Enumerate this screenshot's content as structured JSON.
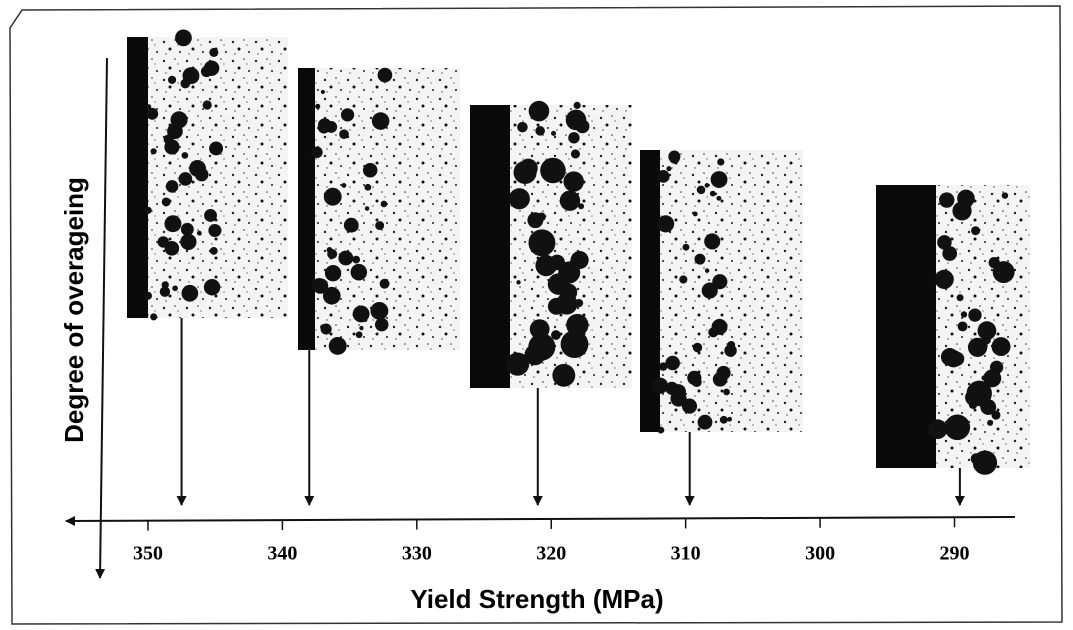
{
  "chart_data": {
    "type": "arrow",
    "xlabel": "Yield Strength (MPa)",
    "ylabel": "Degree of overageing",
    "values": [
      347.5,
      338,
      321,
      309.7,
      289.6
    ],
    "xlim": [
      355.8,
      285.5
    ],
    "xticks": [
      350,
      340,
      330,
      320,
      310,
      300,
      290
    ],
    "color": "#111111"
  }
}
